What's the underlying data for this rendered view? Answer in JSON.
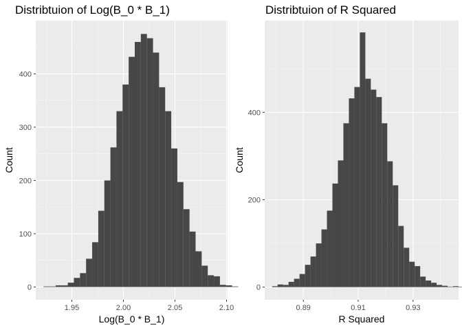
{
  "chart_data": [
    {
      "type": "bar",
      "title": "Distribtuion of Log(B_0 * B_1)",
      "xlabel": "Log(B_0 * B_1)",
      "ylabel": "Count",
      "xlim": [
        1.915,
        2.101
      ],
      "ylim": [
        -24,
        500
      ],
      "xticks": [
        1.95,
        2.0,
        2.05,
        2.1
      ],
      "xtick_labels": [
        "1.95",
        "2.00",
        "2.05",
        "2.10"
      ],
      "yticks": [
        0,
        100,
        200,
        300,
        400
      ],
      "ytick_labels": [
        "0",
        "100",
        "200",
        "300",
        "400"
      ],
      "grid": true,
      "bin_start": 1.9225,
      "bin_width": 0.0059,
      "values": [
        1,
        1,
        3,
        3,
        8,
        17,
        26,
        53,
        84,
        143,
        200,
        262,
        330,
        380,
        432,
        460,
        475,
        467,
        440,
        375,
        330,
        260,
        197,
        146,
        104,
        67,
        40,
        22,
        20,
        4,
        3,
        1
      ],
      "bar_color": "#474747"
    },
    {
      "type": "bar",
      "title": "Distribtuion of R Squared",
      "xlabel": "R Squared",
      "ylabel": "Count",
      "xlim": [
        0.8759,
        0.9466
      ],
      "ylim": [
        -29,
        610
      ],
      "xticks": [
        0.89,
        0.91,
        0.93
      ],
      "xtick_labels": [
        "0.89",
        "0.91",
        "0.93"
      ],
      "yticks": [
        0,
        200,
        400
      ],
      "ytick_labels": [
        "0",
        "200",
        "400"
      ],
      "grid": true,
      "bin_start": 0.8786,
      "bin_width": 0.002,
      "values": [
        2,
        6,
        5,
        12,
        19,
        30,
        51,
        70,
        100,
        132,
        175,
        237,
        290,
        375,
        432,
        458,
        583,
        477,
        452,
        435,
        375,
        288,
        233,
        140,
        90,
        58,
        48,
        24,
        15,
        10,
        5,
        3,
        1,
        2,
        1
      ]
    }
  ]
}
